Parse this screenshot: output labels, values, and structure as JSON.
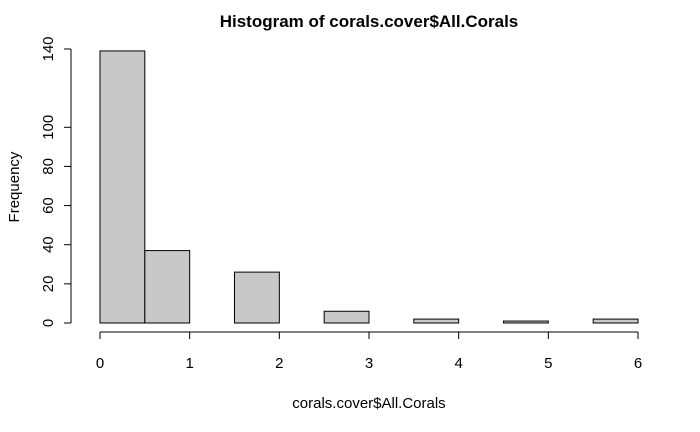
{
  "chart_data": {
    "type": "bar",
    "title": "Histogram of corals.cover$All.Corals",
    "xlabel": "corals.cover$All.Corals",
    "ylabel": "Frequency",
    "xlim": [
      0,
      6
    ],
    "ylim": [
      0,
      140
    ],
    "x_ticks": [
      "0",
      "1",
      "2",
      "3",
      "4",
      "5",
      "6"
    ],
    "y_ticks": [
      "0",
      "20",
      "40",
      "60",
      "80",
      "100",
      "140"
    ],
    "bin_width": 0.5,
    "bins": [
      {
        "start": 0.0,
        "end": 0.5,
        "value": 139
      },
      {
        "start": 0.5,
        "end": 1.0,
        "value": 37
      },
      {
        "start": 1.0,
        "end": 1.5,
        "value": 0
      },
      {
        "start": 1.5,
        "end": 2.0,
        "value": 26
      },
      {
        "start": 2.0,
        "end": 2.5,
        "value": 0
      },
      {
        "start": 2.5,
        "end": 3.0,
        "value": 6
      },
      {
        "start": 3.0,
        "end": 3.5,
        "value": 0
      },
      {
        "start": 3.5,
        "end": 4.0,
        "value": 2
      },
      {
        "start": 4.0,
        "end": 4.5,
        "value": 0
      },
      {
        "start": 4.5,
        "end": 5.0,
        "value": 1
      },
      {
        "start": 5.0,
        "end": 5.5,
        "value": 0
      },
      {
        "start": 5.5,
        "end": 6.0,
        "value": 2
      }
    ],
    "bar_color": "#c8c8c8",
    "bar_stroke": "#000000",
    "grid": false,
    "legend": "none"
  }
}
